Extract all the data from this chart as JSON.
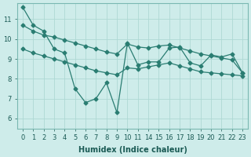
{
  "bg_color": "#ceecea",
  "line_color": "#2a7d72",
  "grid_color": "#aed8d4",
  "xlabel": "Humidex (Indice chaleur)",
  "xlim": [
    -0.5,
    23.5
  ],
  "ylim": [
    5.5,
    11.8
  ],
  "yticks": [
    6,
    7,
    8,
    9,
    10,
    11
  ],
  "xticks": [
    0,
    1,
    2,
    3,
    4,
    5,
    6,
    7,
    8,
    9,
    10,
    11,
    14,
    15,
    16,
    17,
    18,
    19,
    20,
    21,
    22,
    23
  ],
  "series1_x": [
    0,
    1,
    2,
    3,
    4,
    5,
    6,
    7,
    8,
    9,
    10,
    11,
    14,
    15,
    16,
    17,
    18,
    19,
    20,
    21,
    22,
    23
  ],
  "series1_y": [
    11.6,
    10.7,
    10.4,
    9.5,
    9.3,
    7.5,
    6.8,
    7.0,
    7.8,
    6.3,
    9.8,
    8.7,
    8.85,
    8.85,
    9.55,
    9.6,
    8.8,
    8.65,
    9.2,
    9.1,
    9.25,
    8.3
  ],
  "series2_x": [
    0,
    1,
    2,
    3,
    4,
    5,
    6,
    7,
    8,
    9,
    10,
    11,
    14,
    15,
    16,
    17,
    18,
    19,
    20,
    21,
    22,
    23
  ],
  "series2_y": [
    10.7,
    10.4,
    10.2,
    10.1,
    9.95,
    9.8,
    9.65,
    9.5,
    9.35,
    9.25,
    9.75,
    9.6,
    9.55,
    9.65,
    9.7,
    9.55,
    9.4,
    9.25,
    9.15,
    9.05,
    8.95,
    8.3
  ],
  "series3_x": [
    0,
    1,
    2,
    3,
    4,
    5,
    6,
    7,
    8,
    9,
    10,
    11,
    14,
    15,
    16,
    17,
    18,
    19,
    20,
    21,
    22,
    23
  ],
  "series3_y": [
    9.5,
    9.3,
    9.15,
    9.0,
    8.85,
    8.7,
    8.55,
    8.4,
    8.3,
    8.2,
    8.55,
    8.5,
    8.6,
    8.7,
    8.8,
    8.65,
    8.5,
    8.35,
    8.3,
    8.25,
    8.2,
    8.15
  ],
  "marker_size": 2.5,
  "linewidth": 0.9,
  "xlabel_fontsize": 7,
  "tick_fontsize": 6
}
